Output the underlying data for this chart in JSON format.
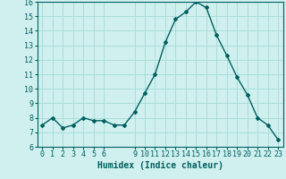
{
  "x": [
    0,
    1,
    2,
    3,
    4,
    5,
    6,
    7,
    8,
    9,
    10,
    11,
    12,
    13,
    14,
    15,
    16,
    17,
    18,
    19,
    20,
    21,
    22,
    23
  ],
  "y": [
    7.5,
    8.0,
    7.3,
    7.5,
    8.0,
    7.8,
    7.8,
    7.5,
    7.5,
    8.4,
    9.7,
    11.0,
    13.2,
    14.8,
    15.3,
    16.0,
    15.6,
    13.7,
    12.3,
    10.8,
    9.6,
    8.0,
    7.5,
    6.5
  ],
  "line_color": "#006060",
  "marker": "D",
  "marker_size": 2,
  "bg_color": "#cff0ee",
  "grid_color": "#aaddda",
  "xlabel": "Humidex (Indice chaleur)",
  "ylim": [
    6,
    16
  ],
  "xlim": [
    -0.5,
    23.5
  ],
  "yticks": [
    6,
    7,
    8,
    9,
    10,
    11,
    12,
    13,
    14,
    15,
    16
  ],
  "xticks": [
    0,
    1,
    2,
    3,
    4,
    5,
    6,
    9,
    10,
    11,
    12,
    13,
    14,
    15,
    16,
    17,
    18,
    19,
    20,
    21,
    22,
    23
  ],
  "tick_color": "#006060",
  "label_color": "#006060",
  "tick_fontsize": 6,
  "xlabel_fontsize": 7,
  "linewidth": 1.0
}
